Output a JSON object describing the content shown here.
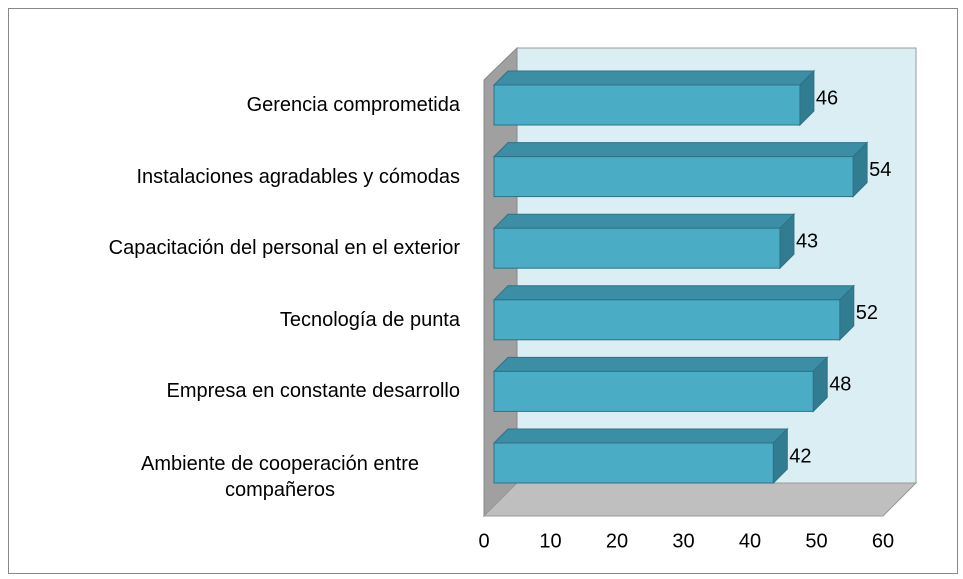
{
  "chart_data": {
    "type": "bar",
    "orientation": "horizontal",
    "categories": [
      "Gerencia comprometida",
      "Instalaciones agradables y cómodas",
      "Capacitación del personal en el exterior",
      "Tecnología de punta",
      "Empresa en constante desarrollo",
      "Ambiente de cooperación entre compañeros"
    ],
    "values": [
      46,
      54,
      43,
      52,
      48,
      42
    ],
    "color": "#4bacc6",
    "xlim": [
      0,
      60
    ],
    "xticks": [
      0,
      10,
      20,
      30,
      40,
      50,
      60
    ]
  }
}
